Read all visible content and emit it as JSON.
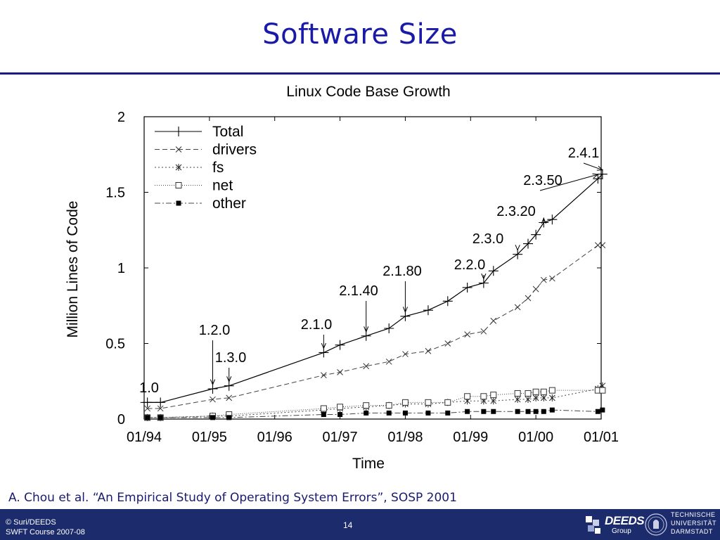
{
  "slide": {
    "title": "Software Size",
    "citation": "A. Chou et al. “An Empirical Study of Operating System Errors”, SOSP 2001",
    "footer_line1": "© Suri/DEEDS",
    "footer_line2": "SWFT Course 2007-08",
    "page_number": "14",
    "deeds_logo_word": "DEEDS",
    "deeds_logo_sub": "Group",
    "tu_line1": "TECHNISCHE",
    "tu_line2": "UNIVERSITÄT",
    "tu_line3": "DARMSTADT"
  },
  "chart_data": {
    "type": "line",
    "title": "Linux Code Base Growth",
    "xlabel": "Time",
    "ylabel": "Million Lines of Code",
    "xlim": [
      1994.0,
      2001.0
    ],
    "ylim": [
      0,
      2
    ],
    "x_ticks": [
      1994,
      1995,
      1996,
      1997,
      1998,
      1999,
      2000,
      2001
    ],
    "x_tick_labels": [
      "01/94",
      "01/95",
      "01/96",
      "01/97",
      "01/98",
      "01/99",
      "01/00",
      "01/01"
    ],
    "y_ticks": [
      0,
      0.5,
      1,
      1.5,
      2
    ],
    "y_tick_labels": [
      "0",
      "0.5",
      "1",
      "1.5",
      "2"
    ],
    "grid": false,
    "legend_position": "top-left",
    "series": [
      {
        "name": "Total",
        "marker": "plus",
        "dash": "",
        "x": [
          1994.05,
          1994.25,
          1995.05,
          1995.3,
          1996.75,
          1997.0,
          1997.4,
          1997.75,
          1998.0,
          1998.35,
          1998.65,
          1998.95,
          1999.2,
          1999.35,
          1999.72,
          1999.88,
          2000.0,
          2000.12,
          2000.25,
          2000.95,
          2001.02
        ],
        "y": [
          0.11,
          0.11,
          0.2,
          0.22,
          0.44,
          0.49,
          0.55,
          0.6,
          0.68,
          0.72,
          0.78,
          0.87,
          0.9,
          0.98,
          1.09,
          1.16,
          1.22,
          1.3,
          1.32,
          1.59,
          1.62
        ]
      },
      {
        "name": "drivers",
        "marker": "x",
        "dash": "7,4",
        "x": [
          1994.05,
          1994.25,
          1995.05,
          1995.3,
          1996.75,
          1997.0,
          1997.4,
          1997.75,
          1998.0,
          1998.35,
          1998.65,
          1998.95,
          1999.2,
          1999.35,
          1999.72,
          1999.88,
          2000.0,
          2000.12,
          2000.25,
          2000.95,
          2001.02
        ],
        "y": [
          0.07,
          0.07,
          0.13,
          0.14,
          0.29,
          0.31,
          0.35,
          0.38,
          0.43,
          0.45,
          0.5,
          0.56,
          0.58,
          0.65,
          0.74,
          0.8,
          0.86,
          0.92,
          0.93,
          1.15,
          1.15
        ]
      },
      {
        "name": "fs",
        "marker": "star",
        "dash": "2,3",
        "x": [
          1994.05,
          1994.25,
          1995.05,
          1995.3,
          1996.75,
          1997.0,
          1997.4,
          1997.75,
          1998.0,
          1998.35,
          1998.65,
          1998.95,
          1999.2,
          1999.35,
          1999.72,
          1999.88,
          2000.0,
          2000.12,
          2000.25,
          2000.95,
          2001.02
        ],
        "y": [
          0.01,
          0.01,
          0.02,
          0.02,
          0.06,
          0.07,
          0.08,
          0.09,
          0.1,
          0.1,
          0.11,
          0.12,
          0.12,
          0.12,
          0.13,
          0.13,
          0.14,
          0.14,
          0.14,
          0.2,
          0.22
        ]
      },
      {
        "name": "net",
        "marker": "square-open",
        "dash": "1,2",
        "x": [
          1994.05,
          1994.25,
          1995.05,
          1995.3,
          1996.75,
          1997.0,
          1997.4,
          1997.75,
          1998.0,
          1998.35,
          1998.65,
          1998.95,
          1999.2,
          1999.35,
          1999.72,
          1999.88,
          2000.0,
          2000.12,
          2000.25,
          2000.95,
          2001.02
        ],
        "y": [
          0.01,
          0.01,
          0.02,
          0.03,
          0.07,
          0.08,
          0.09,
          0.09,
          0.11,
          0.11,
          0.11,
          0.15,
          0.15,
          0.16,
          0.17,
          0.17,
          0.18,
          0.18,
          0.19,
          0.19,
          0.19
        ]
      },
      {
        "name": "other",
        "marker": "square-filled",
        "dash": "8,3,2,3",
        "x": [
          1994.05,
          1994.25,
          1995.05,
          1995.3,
          1996.75,
          1997.0,
          1997.4,
          1997.75,
          1998.0,
          1998.35,
          1998.65,
          1998.95,
          1999.2,
          1999.35,
          1999.72,
          1999.88,
          2000.0,
          2000.12,
          2000.25,
          2000.95,
          2001.02
        ],
        "y": [
          0.01,
          0.01,
          0.01,
          0.01,
          0.03,
          0.03,
          0.04,
          0.04,
          0.04,
          0.04,
          0.04,
          0.05,
          0.05,
          0.05,
          0.05,
          0.05,
          0.05,
          0.05,
          0.06,
          0.05,
          0.06
        ]
      }
    ],
    "annotations": [
      {
        "text": "1.0",
        "x": 1994.05,
        "y": 0.11
      },
      {
        "text": "1.2.0",
        "x": 1995.05,
        "y": 0.2
      },
      {
        "text": "1.3.0",
        "x": 1995.3,
        "y": 0.22
      },
      {
        "text": "2.1.0",
        "x": 1996.75,
        "y": 0.44
      },
      {
        "text": "2.1.40",
        "x": 1997.4,
        "y": 0.55
      },
      {
        "text": "2.1.80",
        "x": 1998.0,
        "y": 0.68
      },
      {
        "text": "2.2.0",
        "x": 1999.2,
        "y": 0.9
      },
      {
        "text": "2.3.0",
        "x": 1999.72,
        "y": 1.09
      },
      {
        "text": "2.3.20",
        "x": 2000.12,
        "y": 1.3
      },
      {
        "text": "2.3.50",
        "x": 2000.95,
        "y": 1.59
      },
      {
        "text": "2.4.1",
        "x": 2001.02,
        "y": 1.62
      }
    ]
  }
}
